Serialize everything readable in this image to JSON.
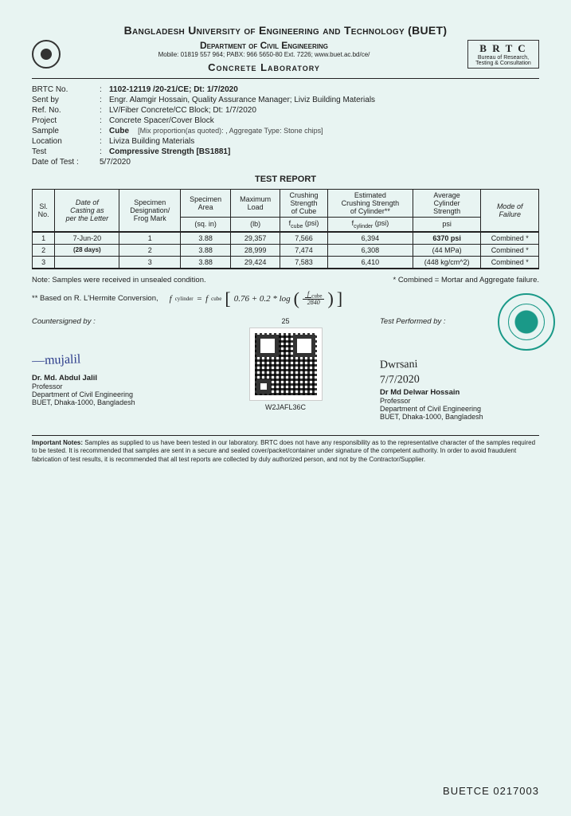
{
  "header": {
    "university": "Bangladesh University of Engineering and Technology (BUET)",
    "department": "Department of Civil Engineering",
    "contact": "Mobile: 01819 557 964; PABX: 966 5650-80 Ext. 7226;   www.buet.ac.bd/ce/",
    "brtc_title": "B R T C",
    "brtc_sub1": "Bureau of Research,",
    "brtc_sub2": "Testing & Consultation",
    "lab": "Concrete  Laboratory"
  },
  "meta": {
    "brtc_no_label": "BRTC No.",
    "brtc_no": "1102-12119 /20-21/CE;  Dt: 1/7/2020",
    "sent_by_label": "Sent by",
    "sent_by": "Engr. Alamgir Hossain, Quality Assurance Manager; Liviz Building Materials",
    "ref_no_label": "Ref. No.",
    "ref_no": "LV/Fiber Concrete/CC Block;   Dt: 1/7/2020",
    "project_label": "Project",
    "project": "Concrete Spacer/Cover Block",
    "sample_label": "Sample",
    "sample": "Cube",
    "sample_bracket": "[Mix proportion(as quoted): ,  Aggregate Type:  Stone chips]",
    "location_label": "Location",
    "location": "Liviza Building Materials",
    "test_label": "Test",
    "test": "Compressive Strength [BS1881]",
    "date_label": "Date of Test :",
    "date_val": "5/7/2020"
  },
  "report_title": "TEST REPORT",
  "table": {
    "h_sl": "Sl.\nNo.",
    "h_date": "Date of\nCasting as\nper the Letter",
    "h_desig": "Specimen\nDesignation/\nFrog Mark",
    "h_area": "Specimen\nArea",
    "h_load": "Maximum\nLoad",
    "h_crush": "Crushing\nStrength\nof Cube",
    "h_est": "Estimated\nCrushing Strength\nof Cylinder**",
    "h_avg": "Average\nCylinder\nStrength",
    "h_mode": "Mode of\nFailure",
    "u_area": "(sq. in)",
    "u_load": "(lb)",
    "u_crush": "f",
    "u_crush2": " (psi)",
    "u_est": "f",
    "u_est2": " (psi)",
    "u_avg": "psi",
    "r1_sl": "1",
    "r1_date": "7-Jun-20",
    "r1_desig": "1",
    "r1_area": "3.88",
    "r1_load": "29,357",
    "r1_crush": "7,566",
    "r1_est": "6,394",
    "r1_avg": "6370 psi",
    "r1_mode": "Combined *",
    "r2_sl": "2",
    "r2_date": "(28 days)",
    "r2_desig": "2",
    "r2_area": "3.88",
    "r2_load": "28,999",
    "r2_crush": "7,474",
    "r2_est": "6,308",
    "r2_avg": "(44 MPa)",
    "r2_mode": "Combined *",
    "r3_sl": "3",
    "r3_desig": "3",
    "r3_area": "3.88",
    "r3_load": "29,424",
    "r3_crush": "7,583",
    "r3_est": "6,410",
    "r3_avg": "(448 kg/cm^2)",
    "r3_mode": "Combined *"
  },
  "notes": {
    "n1": "Note:  Samples were received in unsealed condition.",
    "n2": "* Combined = Mortar and Aggregate failure.",
    "conversion": "** Based on R. L'Hermite Conversion,",
    "f_lhs1": "f",
    "f_eq": " = ",
    "f_rhs1": "f",
    "f_body": "0.76 + 0.2 * log",
    "f_num": "f",
    "f_den": "2840"
  },
  "sigs": {
    "left_label": "Countersigned by :",
    "right_label": "Test Performed by :",
    "qr_top": "25",
    "qr_code": "W2JAFL36C",
    "left_hand": "—mujalil",
    "right_hand1": "Dwrsani",
    "right_hand2": "7/7/2020",
    "left_name": "Dr. Md. Abdul Jalil",
    "right_name": "Dr Md Delwar Hossain",
    "title": "Professor",
    "dept": "Department of Civil Engineering",
    "addr": "BUET, Dhaka-1000, Bangladesh"
  },
  "important": {
    "label": "Important Notes:",
    "text": " Samples as supplied to us have been tested in our laboratory. BRTC does not have any responsibility as to the representative character of the samples required to be tested. It is recommended that samples are sent in a secure and sealed cover/packet/container under signature of the competent authority. In order to avoid fraudulent fabrication of test results, it is recommended that all test reports are collected by duly authorized person, and not by the Contractor/Supplier."
  },
  "footer": "BUETCE 0217003",
  "colors": {
    "bg": "#e8f4f2",
    "text": "#222222",
    "seal": "#1a9988",
    "ink_blue": "#2a3a8a"
  }
}
